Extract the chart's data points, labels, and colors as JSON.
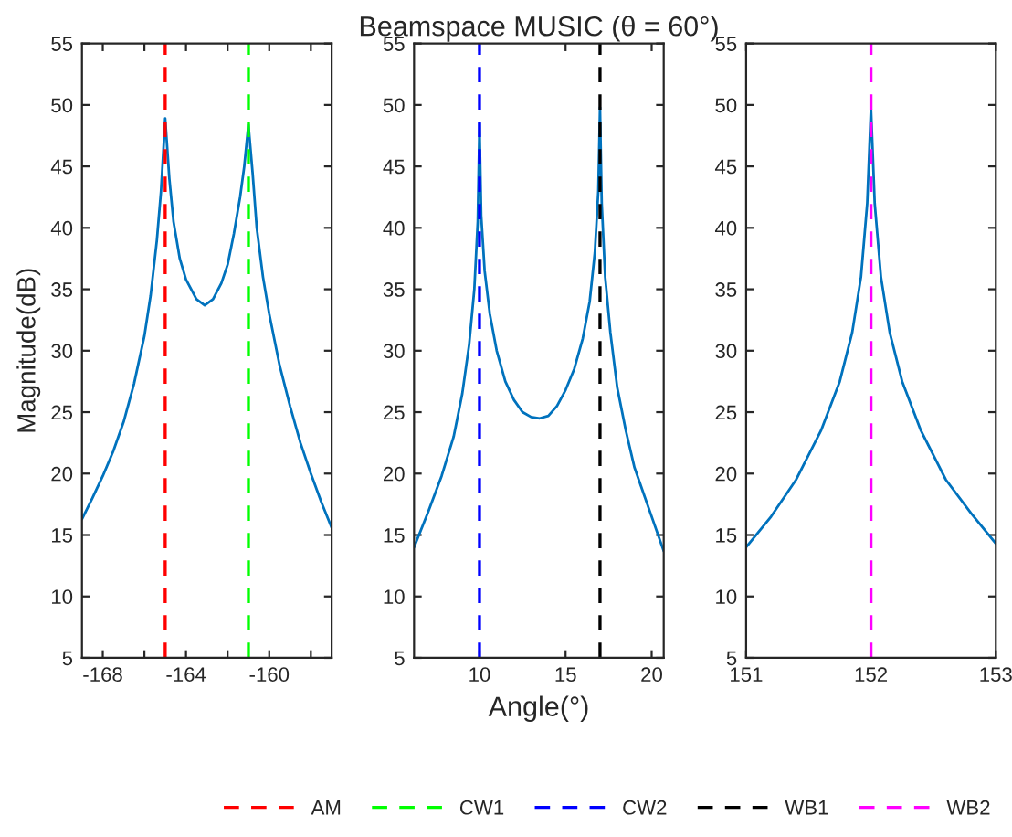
{
  "chart_data": [
    {
      "type": "line",
      "ylabel": "Magnitude(dB)",
      "x": [
        -169,
        -168.5,
        -168,
        -167.5,
        -167,
        -166.5,
        -166,
        -165.7,
        -165.4,
        -165.2,
        -165,
        -164.8,
        -164.6,
        -164.3,
        -164,
        -163.5,
        -163.1,
        -162.7,
        -162.3,
        -162,
        -161.7,
        -161.4,
        -161.2,
        -161,
        -160.8,
        -160.6,
        -160.3,
        -160,
        -159.5,
        -159,
        -158.5,
        -158,
        -157.5,
        -157
      ],
      "series": [
        {
          "color": "#0072bd",
          "values": [
            16.3,
            18,
            19.8,
            21.8,
            24.2,
            27.3,
            31.2,
            34.5,
            39,
            43,
            48.9,
            44,
            40.5,
            37.5,
            35.8,
            34.2,
            33.7,
            34.2,
            35.5,
            37,
            39.5,
            42.5,
            45,
            48.4,
            44.5,
            40,
            36,
            33,
            28.8,
            25.5,
            22.5,
            20,
            17.7,
            15.6
          ]
        }
      ],
      "xlim": [
        -169,
        -157
      ],
      "ylim": [
        5,
        55
      ],
      "xticks": [
        -168,
        {
          "value": -166,
          "label": null
        },
        -164,
        {
          "value": -162,
          "label": null
        },
        -160,
        {
          "value": -158,
          "label": null
        }
      ],
      "yticks": [
        5,
        10,
        15,
        20,
        25,
        30,
        35,
        40,
        45,
        50,
        55
      ],
      "ref_lines": [
        {
          "axis": "x",
          "value": -165,
          "label": "AM",
          "color": "#ff0000",
          "line_style": "dashed"
        },
        {
          "axis": "x",
          "value": -161,
          "label": "CW1",
          "color": "#00ff00",
          "line_style": "dashed"
        }
      ],
      "legend": "bottom",
      "grid": false
    },
    {
      "type": "line",
      "title": "Beamspace MUSIC (θ = 60°)",
      "xlabel": "Angle(°)",
      "x": [
        6.2,
        7,
        7.8,
        8.5,
        9,
        9.4,
        9.7,
        9.9,
        10,
        10.1,
        10.3,
        10.6,
        11,
        11.5,
        12,
        12.5,
        13,
        13.5,
        14,
        14.5,
        15,
        15.5,
        16,
        16.4,
        16.7,
        16.9,
        17,
        17.1,
        17.3,
        17.6,
        18,
        18.5,
        19,
        19.5,
        20,
        20.7
      ],
      "series": [
        {
          "color": "#0072bd",
          "values": [
            14,
            16.8,
            19.8,
            23,
            26.5,
            30.5,
            35,
            40.5,
            48.5,
            41,
            36.5,
            33,
            30,
            27.5,
            26,
            25,
            24.6,
            24.5,
            24.7,
            25.5,
            26.8,
            28.5,
            31,
            34,
            38,
            43,
            49.8,
            42,
            36,
            31.5,
            27,
            23.5,
            20.5,
            18.5,
            16.5,
            13.7
          ]
        }
      ],
      "xlim": [
        6.2,
        20.7
      ],
      "ylim": [
        5,
        55
      ],
      "xticks": [
        10,
        15,
        20
      ],
      "yticks": [
        5,
        10,
        15,
        20,
        25,
        30,
        35,
        40,
        45,
        50,
        55
      ],
      "ref_lines": [
        {
          "axis": "x",
          "value": 10,
          "label": "CW2",
          "color": "#0000ff",
          "line_style": "dashed"
        },
        {
          "axis": "x",
          "value": 17,
          "label": "WB1",
          "color": "#000000",
          "line_style": "dashed"
        }
      ],
      "legend": "bottom",
      "grid": false
    },
    {
      "type": "line",
      "x": [
        151,
        151.2,
        151.4,
        151.6,
        151.75,
        151.85,
        151.92,
        151.97,
        152,
        152.03,
        152.08,
        152.15,
        152.25,
        152.4,
        152.6,
        152.8,
        153
      ],
      "series": [
        {
          "color": "#0072bd",
          "values": [
            14,
            16.5,
            19.5,
            23.5,
            27.5,
            31.5,
            36,
            42,
            49.8,
            42,
            36,
            31.5,
            27.5,
            23.5,
            19.5,
            16.8,
            14.3
          ]
        }
      ],
      "xlim": [
        151,
        153
      ],
      "ylim": [
        5,
        55
      ],
      "xticks": [
        151,
        152,
        153
      ],
      "yticks": [
        5,
        10,
        15,
        20,
        25,
        30,
        35,
        40,
        45,
        50,
        55
      ],
      "ref_lines": [
        {
          "axis": "x",
          "value": 152,
          "label": "WB2",
          "color": "#ff00ff",
          "line_style": "dashed"
        }
      ],
      "legend": "bottom",
      "grid": false
    }
  ]
}
